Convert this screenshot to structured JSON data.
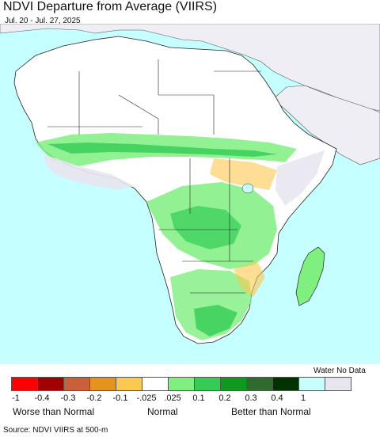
{
  "title": "NDVI Departure from Average (VIIRS)",
  "subtitle": "Jul. 20 - Jul. 27, 2025",
  "legend": {
    "water_label": "Water No Data",
    "colors": [
      "#ff0000",
      "#a30000",
      "#c9603b",
      "#e8921e",
      "#fdc84f",
      "#ffffff",
      "#7fef7f",
      "#33cc55",
      "#0e9a1e",
      "#2f6b2f",
      "#003300",
      "#c7ffff",
      "#e8e6ef"
    ],
    "ticks": [
      "-1",
      "-0.4",
      "-0.3",
      "-0.2",
      "-0.1",
      "-.025",
      ".025",
      "0.1",
      "0.2",
      "0.3",
      "0.4",
      "1"
    ],
    "worse_label": "Worse than Normal",
    "normal_label": "Normal",
    "better_label": "Better than Normal"
  },
  "map": {
    "ocean_color": "#c6ffff",
    "no_data_color": "#f0eef5",
    "land_color": "#ffffff"
  },
  "source": "Source: NDVI VIIRS at 500-m"
}
